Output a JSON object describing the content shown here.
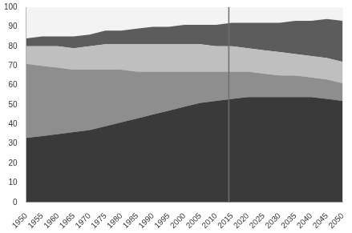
{
  "chart_data": {
    "type": "area",
    "stacked": true,
    "grid": false,
    "x": [
      1950,
      1955,
      1960,
      1965,
      1970,
      1975,
      1980,
      1985,
      1990,
      1995,
      2000,
      2005,
      2010,
      2015,
      2020,
      2025,
      2030,
      2035,
      2040,
      2045,
      2050
    ],
    "xlim": [
      1950,
      2050
    ],
    "xticks": [
      1950,
      1955,
      1960,
      1965,
      1970,
      1975,
      1980,
      1985,
      1990,
      1995,
      2000,
      2005,
      2010,
      2015,
      2020,
      2025,
      2030,
      2035,
      2040,
      2045,
      2050
    ],
    "ylim": [
      0,
      100
    ],
    "yticks": [
      0,
      10,
      20,
      30,
      40,
      50,
      60,
      70,
      80,
      90,
      100
    ],
    "vline": 2014,
    "series": [
      {
        "color": "#3a3a3a",
        "values": [
          33,
          34,
          35,
          36,
          37,
          39,
          41,
          43,
          45,
          47,
          49,
          51,
          52,
          53,
          54,
          54,
          54,
          54,
          54,
          53,
          52
        ]
      },
      {
        "color": "#8e8e8e",
        "values": [
          38,
          36,
          34,
          32,
          31,
          29,
          27,
          24,
          22,
          20,
          18,
          16,
          15,
          14,
          13,
          12,
          11,
          11,
          10,
          10,
          9
        ]
      },
      {
        "color": "#bfbfbf",
        "values": [
          9,
          10,
          11,
          11,
          12,
          13,
          13,
          14,
          14,
          14,
          14,
          14,
          13,
          13,
          12,
          12,
          12,
          11,
          11,
          11,
          11
        ]
      },
      {
        "color": "#5c5c5c",
        "values": [
          4,
          5,
          5,
          6,
          6,
          7,
          7,
          8,
          9,
          9,
          10,
          10,
          11,
          12,
          13,
          14,
          15,
          17,
          18,
          20,
          21
        ]
      }
    ]
  }
}
